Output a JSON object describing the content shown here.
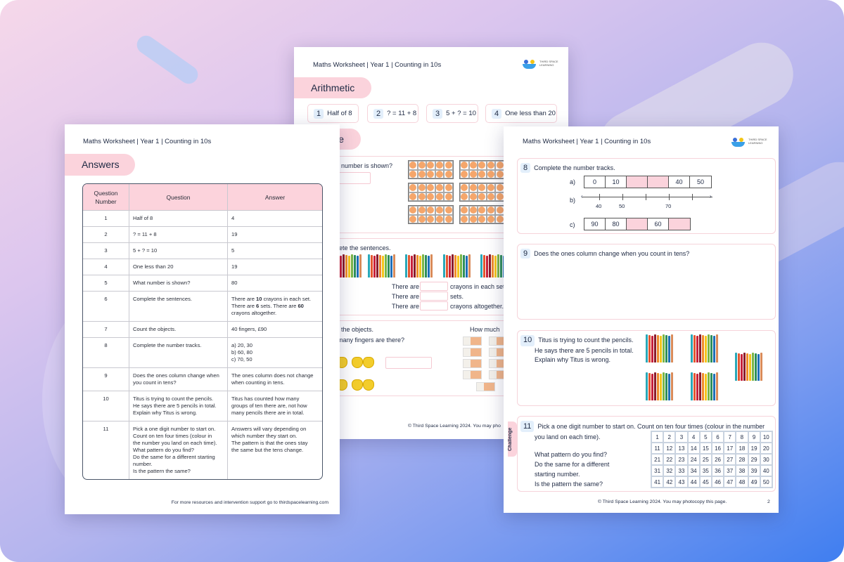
{
  "colors": {
    "pink": "#fbd3dc",
    "num_bg": "#e3effb",
    "dot": "#f5a66b",
    "text": "#1f2a44"
  },
  "header": "Maths Worksheet | Year 1 | Counting in 10s",
  "logo_text": "THIRD SPACE LEARNING",
  "middle_page": {
    "section1": "Arithmetic",
    "arithmetic": [
      {
        "n": "1",
        "q": "Half of 8"
      },
      {
        "n": "2",
        "q": "? = 11 + 8"
      },
      {
        "n": "3",
        "q": "5 + ? = 10"
      },
      {
        "n": "4",
        "q": "One less than 20"
      }
    ],
    "section2": "e",
    "q5": "t number is shown?",
    "q6": "lete the sentences.",
    "sentences": [
      {
        "a": "There are",
        "b": "crayons in each set."
      },
      {
        "a": "There are",
        "b": "sets."
      },
      {
        "a": "There are",
        "b": "crayons altogether."
      }
    ],
    "q7a": "t the objects.",
    "q7b": "many fingers are there?",
    "q7c": "How much",
    "footer": "© Third Space Learning 2024. You may pho"
  },
  "answers_page": {
    "section": "Answers",
    "columns": [
      "Question Number",
      "Question",
      "Answer"
    ],
    "rows": [
      {
        "n": "1",
        "q": [
          "Half of 8"
        ],
        "a": [
          "4"
        ]
      },
      {
        "n": "2",
        "q": [
          "? = 11 + 8"
        ],
        "a": [
          "19"
        ]
      },
      {
        "n": "3",
        "q": [
          "5 + ? = 10"
        ],
        "a": [
          "5"
        ]
      },
      {
        "n": "4",
        "q": [
          "One less than 20"
        ],
        "a": [
          "19"
        ]
      },
      {
        "n": "5",
        "q": [
          "What number is shown?"
        ],
        "a": [
          "80"
        ]
      },
      {
        "n": "6",
        "q": [
          "Complete the sentences."
        ],
        "a_parts": [
          "There are ",
          "10",
          " crayons in each set. There are ",
          "6",
          " sets. There are ",
          "60",
          " crayons altogether."
        ]
      },
      {
        "n": "7",
        "q": [
          "Count the objects."
        ],
        "a": [
          "40 fingers, £90"
        ]
      },
      {
        "n": "8",
        "q": [
          "Complete the number tracks."
        ],
        "a": [
          "a) 20, 30",
          "b) 60, 80",
          "c) 70, 50"
        ]
      },
      {
        "n": "9",
        "q": [
          "Does the ones column change when",
          "you count in tens?"
        ],
        "a": [
          "The ones column does not change",
          "when counting in tens."
        ]
      },
      {
        "n": "10",
        "q": [
          "Titus is trying to count the pencils.",
          "He says there are 5 pencils in total.",
          "Explain why Titus is wrong."
        ],
        "a": [
          "Titus has counted how many",
          "groups of ten there are, not how",
          "many pencils there are in total."
        ]
      },
      {
        "n": "11",
        "q": [
          "Pick a one digit number to start on.",
          "Count on ten four times (colour in",
          "the number you land on each time).",
          "What pattern do you find?",
          "Do the same for a different starting",
          "number.",
          "Is the pattern the same?"
        ],
        "a": [
          "Answers will vary depending on",
          "which number they start on.",
          "The pattern is that the ones stay",
          "the same but the tens change."
        ]
      }
    ],
    "footer": "For more resources and intervention support go to thirdspacelearning.com"
  },
  "right_page": {
    "q8": {
      "n": "8",
      "text": "Complete the number tracks.",
      "a_label": "a)",
      "a_track": [
        "0",
        "10",
        "",
        "",
        "40",
        "50"
      ],
      "b_label": "b)",
      "b_ticks": [
        "40",
        "50",
        "",
        "70",
        ""
      ],
      "c_label": "c)",
      "c_track": [
        "90",
        "80",
        "",
        "60",
        ""
      ]
    },
    "q9": {
      "n": "9",
      "text": "Does the ones column change when you count in tens?"
    },
    "q10": {
      "n": "10",
      "lines": [
        "Titus is trying to count the pencils.",
        "He says there are 5 pencils in total.",
        "Explain why Titus is wrong."
      ]
    },
    "q11": {
      "n": "11",
      "lines": [
        "Pick a one digit number to start on. Count on ten four times (colour in the number",
        "you land on each time)."
      ],
      "lines2": [
        "What pattern do you find?",
        "Do the same for a different",
        "starting number.",
        "Is the pattern the same?"
      ],
      "tab": "Challenge",
      "grid_max": 50
    },
    "footer": "© Third Space Learning 2024. You may photocopy this page.",
    "page_number": "2"
  }
}
